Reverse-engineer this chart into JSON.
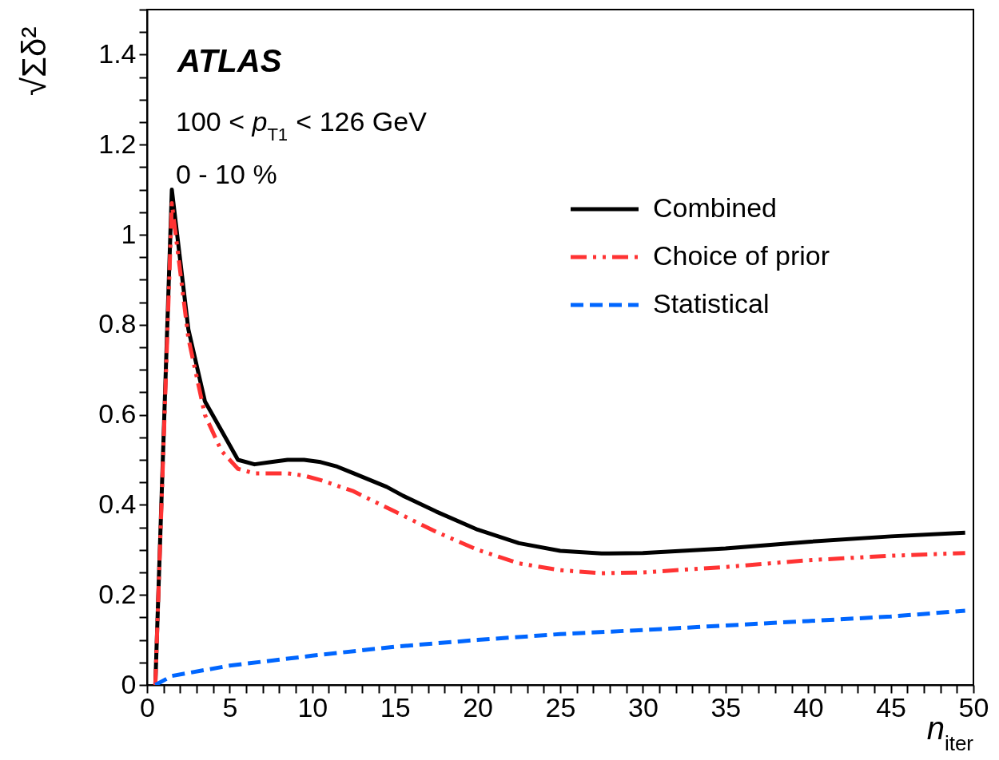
{
  "chart_data": {
    "type": "line",
    "xlabel": "n$_{iter}$",
    "ylabel": "√Σδ²",
    "annotations": [
      "ATLAS",
      "100 < p$_{T1}$ < 126 GeV",
      "0 - 10 %"
    ],
    "xlim": [
      0,
      50
    ],
    "ylim": [
      0,
      1.5
    ],
    "xticks": [
      0,
      {
        "value": 1,
        "label": null
      },
      {
        "value": 2,
        "label": null
      },
      {
        "value": 3,
        "label": null
      },
      {
        "value": 4,
        "label": null
      },
      5,
      {
        "value": 6,
        "label": null
      },
      {
        "value": 7,
        "label": null
      },
      {
        "value": 8,
        "label": null
      },
      {
        "value": 9,
        "label": null
      },
      10,
      {
        "value": 11,
        "label": null
      },
      {
        "value": 12,
        "label": null
      },
      {
        "value": 13,
        "label": null
      },
      {
        "value": 14,
        "label": null
      },
      15,
      {
        "value": 16,
        "label": null
      },
      {
        "value": 17,
        "label": null
      },
      {
        "value": 18,
        "label": null
      },
      {
        "value": 19,
        "label": null
      },
      20,
      {
        "value": 21,
        "label": null
      },
      {
        "value": 22,
        "label": null
      },
      {
        "value": 23,
        "label": null
      },
      {
        "value": 24,
        "label": null
      },
      25,
      {
        "value": 26,
        "label": null
      },
      {
        "value": 27,
        "label": null
      },
      {
        "value": 28,
        "label": null
      },
      {
        "value": 29,
        "label": null
      },
      30,
      {
        "value": 31,
        "label": null
      },
      {
        "value": 32,
        "label": null
      },
      {
        "value": 33,
        "label": null
      },
      {
        "value": 34,
        "label": null
      },
      35,
      {
        "value": 36,
        "label": null
      },
      {
        "value": 37,
        "label": null
      },
      {
        "value": 38,
        "label": null
      },
      {
        "value": 39,
        "label": null
      },
      40,
      {
        "value": 41,
        "label": null
      },
      {
        "value": 42,
        "label": null
      },
      {
        "value": 43,
        "label": null
      },
      {
        "value": 44,
        "label": null
      },
      45,
      {
        "value": 46,
        "label": null
      },
      {
        "value": 47,
        "label": null
      },
      {
        "value": 48,
        "label": null
      },
      {
        "value": 49,
        "label": null
      },
      50
    ],
    "yticks": [
      0,
      {
        "value": 0.05,
        "label": null
      },
      {
        "value": 0.1,
        "label": null
      },
      {
        "value": 0.15,
        "label": null
      },
      0.2,
      {
        "value": 0.25,
        "label": null
      },
      {
        "value": 0.3,
        "label": null
      },
      {
        "value": 0.35,
        "label": null
      },
      0.4,
      {
        "value": 0.45,
        "label": null
      },
      {
        "value": 0.5,
        "label": null
      },
      {
        "value": 0.55,
        "label": null
      },
      0.6,
      {
        "value": 0.65,
        "label": null
      },
      {
        "value": 0.7,
        "label": null
      },
      {
        "value": 0.75,
        "label": null
      },
      0.8,
      {
        "value": 0.85,
        "label": null
      },
      {
        "value": 0.9,
        "label": null
      },
      {
        "value": 0.95,
        "label": null
      },
      1,
      {
        "value": 1.05,
        "label": null
      },
      {
        "value": 1.1,
        "label": null
      },
      {
        "value": 1.15,
        "label": null
      },
      1.2,
      {
        "value": 1.25,
        "label": null
      },
      {
        "value": 1.3,
        "label": null
      },
      {
        "value": 1.35,
        "label": null
      },
      1.4,
      {
        "value": 1.45,
        "label": null
      },
      {
        "value": 1.5,
        "label": null
      }
    ],
    "grid": false,
    "legend": "right",
    "marker": "none",
    "series": [
      {
        "name": "Combined",
        "color": "#000000",
        "line_style": "solid",
        "x": [
          0.5,
          1.5,
          2.5,
          3.5,
          4.5,
          5.5,
          6.5,
          7.5,
          8.5,
          9.5,
          10.5,
          11.5,
          12.5,
          13.5,
          14.5,
          15.5,
          17.5,
          20,
          22.5,
          25,
          27.5,
          30,
          35,
          40,
          45,
          49.5
        ],
        "values": [
          0,
          1.1,
          0.79,
          0.63,
          0.565,
          0.5,
          0.49,
          0.495,
          0.5,
          0.5,
          0.495,
          0.485,
          0.47,
          0.455,
          0.44,
          0.42,
          0.385,
          0.345,
          0.315,
          0.298,
          0.292,
          0.293,
          0.303,
          0.318,
          0.33,
          0.338
        ]
      },
      {
        "name": "Choice of prior",
        "color": "#ff3333",
        "line_style": "dotted",
        "x": [
          0.5,
          1.5,
          2.5,
          3.5,
          4.5,
          5.5,
          6.5,
          8.5,
          9.5,
          10.5,
          12.5,
          15,
          17.5,
          20,
          22.5,
          25,
          27.5,
          30,
          35,
          40,
          45,
          49.5
        ],
        "values": [
          0,
          1.07,
          0.77,
          0.6,
          0.52,
          0.48,
          0.47,
          0.47,
          0.465,
          0.455,
          0.43,
          0.385,
          0.34,
          0.3,
          0.27,
          0.255,
          0.248,
          0.25,
          0.262,
          0.277,
          0.287,
          0.293
        ]
      },
      {
        "name": "Statistical",
        "color": "#0066ff",
        "line_style": "dashed",
        "x": [
          0.5,
          1.5,
          5,
          10,
          15,
          20,
          25,
          30,
          35,
          40,
          45,
          49.5
        ],
        "values": [
          0,
          0.02,
          0.043,
          0.065,
          0.085,
          0.1,
          0.113,
          0.122,
          0.132,
          0.142,
          0.152,
          0.165
        ]
      }
    ]
  }
}
